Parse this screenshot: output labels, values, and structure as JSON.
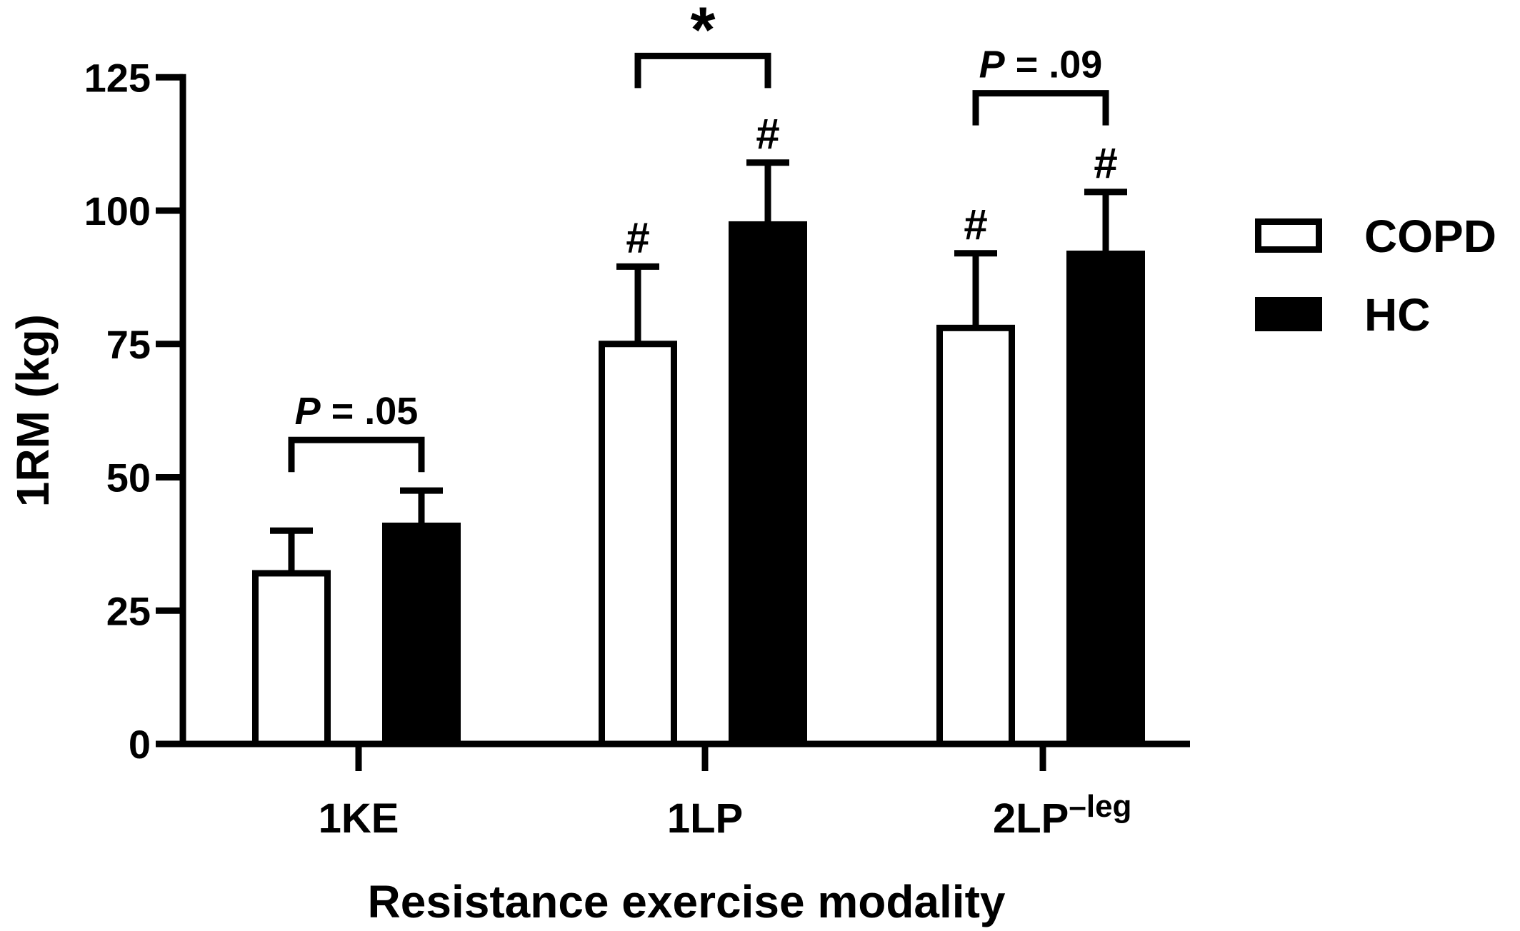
{
  "chart_data": {
    "type": "bar",
    "xlabel": "Resistance exercise modality",
    "ylabel": "1RM (kg)",
    "ylim": [
      0,
      125
    ],
    "yticks": [
      0,
      25,
      50,
      75,
      100,
      125
    ],
    "categories": [
      {
        "label": "1KE",
        "superscript": ""
      },
      {
        "label": "1LP",
        "superscript": ""
      },
      {
        "label": "2LP",
        "superscript": "–leg"
      }
    ],
    "series": [
      {
        "name": "COPD",
        "fill": "#ffffff",
        "values": [
          32,
          75,
          78
        ],
        "error": [
          8,
          14.5,
          14
        ]
      },
      {
        "name": "HC",
        "fill": "#000000",
        "values": [
          41.5,
          98,
          92.5
        ],
        "error": [
          6,
          11,
          11
        ]
      }
    ],
    "bar_marks": [
      [
        "",
        "#",
        "#"
      ],
      [
        "",
        "#",
        "#"
      ]
    ],
    "comparisons": [
      {
        "category": 0,
        "label_italic": "P",
        "label_rest": " = .05",
        "y": 57
      },
      {
        "category": 1,
        "label_italic": "",
        "label_rest": "*",
        "y": 129
      },
      {
        "category": 2,
        "label_italic": "P",
        "label_rest": " = .09",
        "y": 122
      }
    ],
    "legend": {
      "position": "right"
    },
    "grid": false
  }
}
